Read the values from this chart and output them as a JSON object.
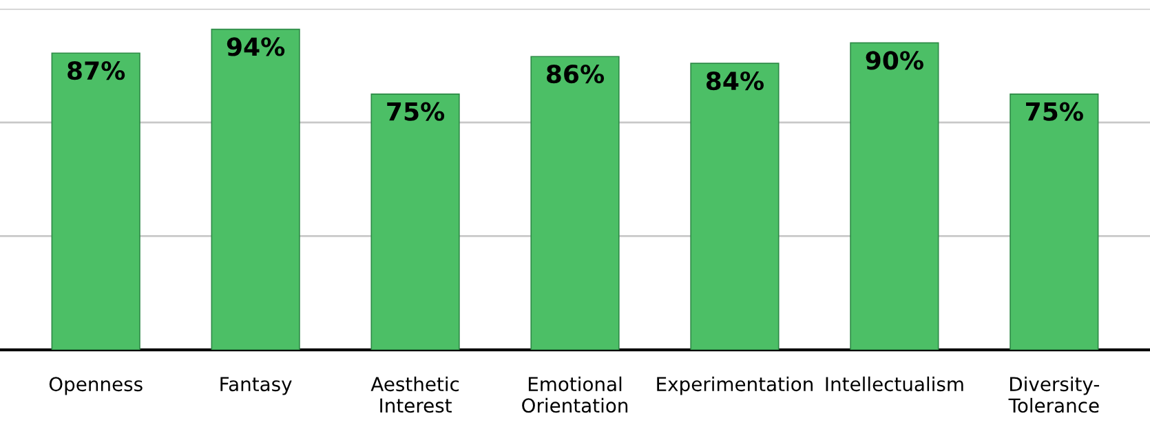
{
  "chart_data": {
    "type": "bar",
    "categories": [
      "Openness",
      "Fantasy",
      "Aesthetic\nInterest",
      "Emotional\nOrientation",
      "Experimentation",
      "Intellectualism",
      "Diversity-\nTolerance"
    ],
    "values": [
      87,
      94,
      75,
      86,
      84,
      90,
      75
    ],
    "value_labels": [
      "87%",
      "94%",
      "75%",
      "86%",
      "84%",
      "90%",
      "75%"
    ],
    "color": "#4cbf66",
    "ylim": [
      0,
      100
    ],
    "tick_labels": "x",
    "ref_lines": [
      {
        "axis": "y",
        "value": 33.33,
        "color": "#c8c8c8"
      },
      {
        "axis": "y",
        "value": 66.67,
        "color": "#c8c8c8"
      },
      {
        "axis": "y",
        "value": 100,
        "color": "#c8c8c8"
      }
    ]
  }
}
